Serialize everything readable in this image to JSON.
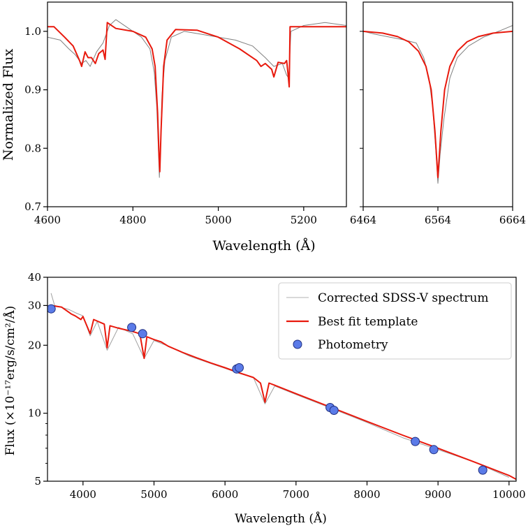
{
  "chart_data": [
    {
      "type": "line",
      "panel": "top-left",
      "xlim": [
        4600,
        5300
      ],
      "ylim": [
        0.7,
        1.05
      ],
      "xticks": [
        4600,
        4800,
        5000,
        5200
      ],
      "xtick_labels": [
        "4600",
        "4800",
        "5000",
        "5200"
      ],
      "yticks": [
        0.7,
        0.8,
        0.9,
        1.0
      ],
      "ytick_labels": [
        "0.7",
        "0.8",
        "0.9",
        "1.0"
      ],
      "ylabel": "Normalized Flux",
      "shared_xlabel": "Wavelength (Å)",
      "series": [
        {
          "role": "observed",
          "color": "#808080",
          "x": [
            4600,
            4630,
            4650,
            4665,
            4680,
            4690,
            4700,
            4715,
            4730,
            4745,
            4760,
            4790,
            4820,
            4840,
            4850,
            4856,
            4860,
            4862,
            4864,
            4868,
            4875,
            4890,
            4920,
            4960,
            5000,
            5040,
            5080,
            5110,
            5130,
            5150,
            5160,
            5165,
            5170,
            5200,
            5250,
            5300
          ],
          "y": [
            0.99,
            0.985,
            0.97,
            0.96,
            0.945,
            0.95,
            0.94,
            0.965,
            0.98,
            1.01,
            1.02,
            1.005,
            0.99,
            0.97,
            0.93,
            0.87,
            0.79,
            0.75,
            0.79,
            0.89,
            0.95,
            0.99,
            1.0,
            0.995,
            0.99,
            0.985,
            0.975,
            0.955,
            0.94,
            0.945,
            0.925,
            0.92,
            1.0,
            1.01,
            1.015,
            1.01
          ]
        },
        {
          "role": "model",
          "color": "#e8190d",
          "x": [
            4600,
            4615,
            4640,
            4660,
            4675,
            4680,
            4688,
            4695,
            4703,
            4712,
            4720,
            4730,
            4735,
            4740,
            4760,
            4800,
            4830,
            4845,
            4852,
            4858,
            4861,
            4863,
            4866,
            4872,
            4880,
            4900,
            4950,
            5000,
            5050,
            5090,
            5100,
            5110,
            5125,
            5130,
            5140,
            5155,
            5160,
            5163,
            5166,
            5168,
            5200,
            5250,
            5300
          ],
          "y": [
            1.008,
            1.008,
            0.99,
            0.975,
            0.95,
            0.94,
            0.965,
            0.955,
            0.955,
            0.945,
            0.962,
            0.968,
            0.952,
            1.015,
            1.005,
            1.0,
            0.99,
            0.97,
            0.94,
            0.86,
            0.79,
            0.76,
            0.83,
            0.94,
            0.985,
            1.003,
            1.002,
            0.99,
            0.97,
            0.95,
            0.94,
            0.945,
            0.935,
            0.922,
            0.947,
            0.945,
            0.95,
            0.93,
            0.905,
            1.008,
            1.008,
            1.008,
            1.008
          ]
        }
      ]
    },
    {
      "type": "line",
      "panel": "top-right",
      "xlim": [
        6464,
        6664
      ],
      "ylim": [
        0.7,
        1.05
      ],
      "xticks": [
        6464,
        6564,
        6664
      ],
      "xtick_labels": [
        "6464",
        "6564",
        "6664"
      ],
      "series": [
        {
          "role": "observed",
          "color": "#808080",
          "x": [
            6464,
            6480,
            6500,
            6520,
            6535,
            6545,
            6552,
            6557,
            6561,
            6564,
            6567,
            6572,
            6580,
            6590,
            6605,
            6625,
            6645,
            6664
          ],
          "y": [
            1.0,
            0.995,
            0.99,
            0.985,
            0.98,
            0.955,
            0.92,
            0.87,
            0.8,
            0.74,
            0.79,
            0.85,
            0.92,
            0.955,
            0.975,
            0.99,
            1.0,
            1.01
          ]
        },
        {
          "role": "model",
          "color": "#e8190d",
          "x": [
            6464,
            6490,
            6510,
            6525,
            6538,
            6548,
            6555,
            6560,
            6564,
            6568,
            6573,
            6580,
            6590,
            6603,
            6618,
            6638,
            6664
          ],
          "y": [
            1.0,
            0.997,
            0.991,
            0.982,
            0.966,
            0.94,
            0.9,
            0.83,
            0.75,
            0.83,
            0.9,
            0.94,
            0.966,
            0.982,
            0.991,
            0.997,
            1.0
          ]
        }
      ]
    },
    {
      "type": "line",
      "panel": "bottom",
      "xlim": [
        3500,
        10100
      ],
      "ylim": [
        5,
        40
      ],
      "yscale": "log",
      "xticks": [
        4000,
        5000,
        6000,
        7000,
        8000,
        9000,
        10000
      ],
      "xtick_labels": [
        "4000",
        "5000",
        "6000",
        "7000",
        "8000",
        "9000",
        "10000"
      ],
      "yticks": [
        5,
        10,
        20,
        30,
        40
      ],
      "ytick_labels": [
        "5",
        "10",
        "20",
        "30",
        "40"
      ],
      "xlabel": "Wavelength (Å)",
      "ylabel": "Flux (×10⁻¹⁷erg/s/cm²/Å)",
      "legend": {
        "position": "top-right",
        "entries": [
          {
            "label": "Corrected SDSS-V spectrum",
            "marker": "line",
            "color": "#b0b0b0"
          },
          {
            "label": "Best fit template",
            "marker": "line",
            "color": "#e8190d"
          },
          {
            "label": "Photometry",
            "marker": "circle",
            "color": "#5b7be8"
          }
        ]
      },
      "series": [
        {
          "name": "Corrected SDSS-V spectrum",
          "color": "#a0a0a0",
          "x": [
            3550,
            3600,
            3700,
            3800,
            3900,
            4000,
            4101,
            4200,
            4340,
            4500,
            4700,
            4861,
            5000,
            5200,
            5500,
            5800,
            6000,
            6200,
            6400,
            6563,
            6700,
            7000,
            7500,
            8000,
            8500,
            9000,
            9500,
            10000
          ],
          "y": [
            34,
            30,
            29.4,
            28.8,
            27.8,
            27.0,
            22.0,
            25.5,
            19.0,
            24.0,
            22.5,
            17.5,
            21.0,
            19.8,
            17.9,
            16.6,
            15.8,
            15.0,
            14.4,
            11.0,
            13.2,
            12.1,
            10.5,
            9.1,
            7.8,
            6.9,
            6.1,
            5.2
          ]
        },
        {
          "name": "Best fit template",
          "color": "#e8190d",
          "x": [
            3550,
            3700,
            3835,
            3889,
            3970,
            4000,
            4101,
            4150,
            4300,
            4340,
            4380,
            4500,
            4700,
            4800,
            4861,
            4900,
            5000,
            5100,
            5200,
            5400,
            5600,
            5800,
            6000,
            6200,
            6400,
            6500,
            6563,
            6620,
            6700,
            7000,
            7500,
            8000,
            8500,
            9000,
            9500,
            10000,
            10100
          ],
          "y": [
            30.0,
            29.5,
            27.5,
            27.0,
            26.0,
            26.8,
            22.5,
            26.0,
            24.8,
            19.5,
            24.4,
            23.8,
            23.0,
            22.5,
            17.5,
            21.8,
            21.2,
            20.7,
            19.8,
            18.6,
            17.6,
            16.7,
            15.9,
            15.1,
            14.4,
            13.6,
            11.2,
            13.6,
            13.3,
            12.2,
            10.6,
            9.2,
            8.0,
            7.0,
            6.1,
            5.3,
            5.1
          ]
        },
        {
          "name": "Photometry",
          "color": "#5b7be8",
          "x": [
            3551,
            4686,
            4840,
            6165,
            6200,
            7480,
            7535,
            8680,
            8940,
            9630
          ],
          "y": [
            29.0,
            24.0,
            22.5,
            15.7,
            15.9,
            10.6,
            10.3,
            7.5,
            6.9,
            5.6
          ]
        }
      ]
    }
  ]
}
